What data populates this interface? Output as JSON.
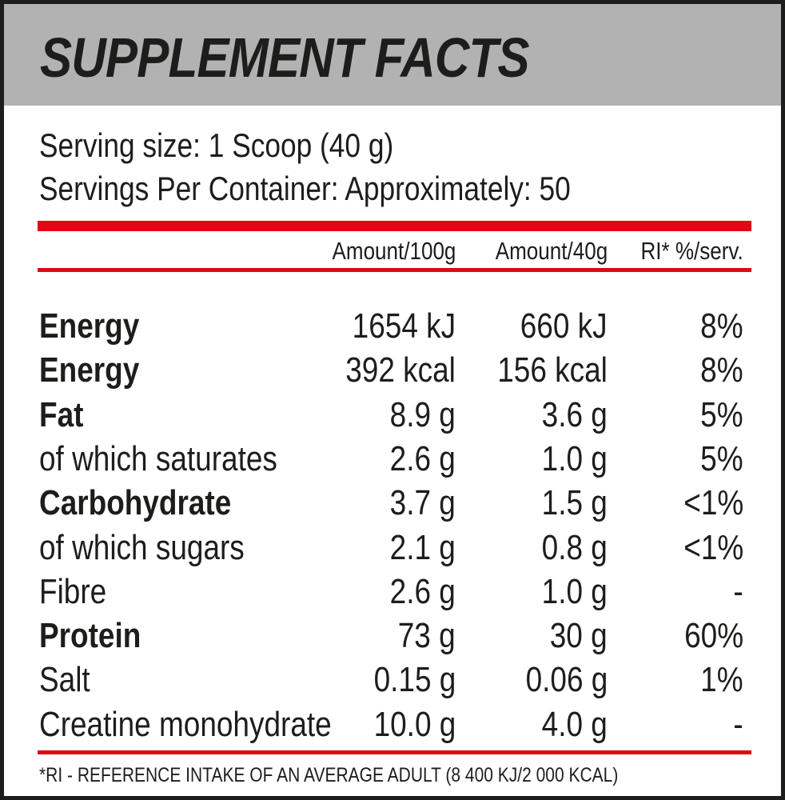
{
  "title": "SUPPLEMENT FACTS",
  "serving_size": "Serving size: 1 Scoop (40 g)",
  "servings_per_container": "Servings Per Container: Approximately: 50",
  "columns": [
    "Amount/100g",
    "Amount/40g",
    "RI* %/serv."
  ],
  "rows": [
    {
      "name": "Energy",
      "per100": "1654 kJ",
      "per40": "660 kJ",
      "ri": "8%",
      "bold": true
    },
    {
      "name": "Energy",
      "per100": "392 kcal",
      "per40": "156 kcal",
      "ri": "8%",
      "bold": true
    },
    {
      "name": "Fat",
      "per100": "8.9 g",
      "per40": "3.6 g",
      "ri": "5%",
      "bold": true
    },
    {
      "name": "of which saturates",
      "per100": "2.6 g",
      "per40": "1.0 g",
      "ri": "5%",
      "bold": false
    },
    {
      "name": "Carbohydrate",
      "per100": "3.7 g",
      "per40": "1.5 g",
      "ri": "<1%",
      "bold": true
    },
    {
      "name": "of which sugars",
      "per100": "2.1 g",
      "per40": "0.8 g",
      "ri": "<1%",
      "bold": false
    },
    {
      "name": "Fibre",
      "per100": "2.6 g",
      "per40": "1.0 g",
      "ri": "-",
      "bold": false
    },
    {
      "name": "Protein",
      "per100": "73 g",
      "per40": "30 g",
      "ri": "60%",
      "bold": true
    },
    {
      "name": "Salt",
      "per100": "0.15 g",
      "per40": "0.06 g",
      "ri": "1%",
      "bold": false
    },
    {
      "name": "Creatine monohydrate",
      "per100": "10.0 g",
      "per40": "4.0 g",
      "ri": "-",
      "bold": false
    }
  ],
  "footnote": "*RI - REFERENCE INTAKE OF AN AVERAGE ADULT (8 400 KJ/2 000 KCAL)",
  "colors": {
    "accent": "#e30613",
    "header_bg": "#b2b2b2"
  }
}
